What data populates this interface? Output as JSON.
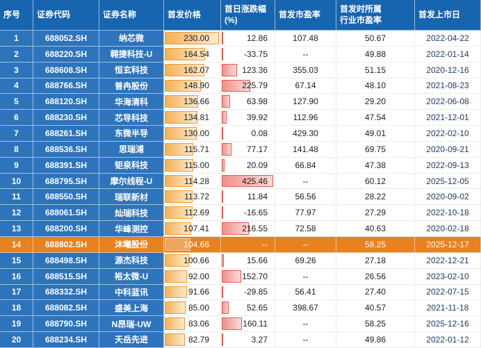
{
  "chart_data": {
    "type": "table",
    "columns": [
      "序号",
      "证券代码",
      "证券名称",
      "首发价格",
      "首日涨跌幅\n(%)",
      "首发市盈率",
      "首发时所属\n行业市盈率",
      "首发上市日"
    ],
    "rows": [
      [
        "1",
        "688052.SH",
        "纳芯微",
        "230.00",
        "12.86",
        "107.48",
        "50.67",
        "2022-04-22"
      ],
      [
        "2",
        "688220.SH",
        "翱捷科技-U",
        "164.54",
        "-33.75",
        "--",
        "49.88",
        "2022-01-14"
      ],
      [
        "3",
        "688608.SH",
        "恒玄科技",
        "162.07",
        "123.36",
        "355.03",
        "51.15",
        "2020-12-16"
      ],
      [
        "4",
        "688766.SH",
        "普冉股份",
        "148.90",
        "225.79",
        "67.14",
        "48.10",
        "2021-08-23"
      ],
      [
        "5",
        "688120.SH",
        "华海清科",
        "136.66",
        "63.98",
        "127.90",
        "29.20",
        "2022-06-08"
      ],
      [
        "6",
        "688230.SH",
        "芯导科技",
        "134.81",
        "39.92",
        "112.96",
        "47.54",
        "2021-12-01"
      ],
      [
        "7",
        "688261.SH",
        "东微半导",
        "130.00",
        "0.08",
        "429.30",
        "49.01",
        "2022-02-10"
      ],
      [
        "8",
        "688536.SH",
        "思瑞浦",
        "115.71",
        "77.17",
        "141.48",
        "69.75",
        "2020-09-21"
      ],
      [
        "9",
        "688391.SH",
        "钜泉科技",
        "115.00",
        "20.09",
        "66.84",
        "47.38",
        "2022-09-13"
      ],
      [
        "10",
        "688795.SH",
        "摩尔线程-U",
        "114.28",
        "425.46",
        "--",
        "60.12",
        "2025-12-05"
      ],
      [
        "11",
        "688550.SH",
        "瑞联新材",
        "113.72",
        "11.84",
        "56.56",
        "28.22",
        "2020-09-02"
      ],
      [
        "12",
        "688061.SH",
        "灿瑞科技",
        "112.69",
        "-16.65",
        "77.97",
        "27.29",
        "2022-10-18"
      ],
      [
        "13",
        "688200.SH",
        "华峰测控",
        "107.41",
        "216.55",
        "72.58",
        "40.63",
        "2020-02-18"
      ],
      [
        "14",
        "688802.SH",
        "沐曦股份",
        "104.66",
        "--",
        "--",
        "58.25",
        "2025-12-17"
      ],
      [
        "15",
        "688498.SH",
        "源杰科技",
        "100.66",
        "15.66",
        "69.26",
        "27.18",
        "2022-12-21"
      ],
      [
        "16",
        "688515.SH",
        "裕太微-U",
        "92.00",
        "152.70",
        "--",
        "26.56",
        "2023-02-10"
      ],
      [
        "17",
        "688332.SH",
        "中科蓝讯",
        "91.66",
        "-29.85",
        "56.41",
        "27.40",
        "2022-07-15"
      ],
      [
        "18",
        "688082.SH",
        "盛美上海",
        "85.00",
        "52.65",
        "398.67",
        "40.57",
        "2021-11-18"
      ],
      [
        "19",
        "688790.SH",
        "N昂瑞-UW",
        "83.06",
        "160.11",
        "--",
        "58.25",
        "2025-12-16"
      ],
      [
        "20",
        "688234.SH",
        "天岳先进",
        "82.79",
        "3.27",
        "--",
        "49.86",
        "2022-01-12"
      ]
    ],
    "highlight_row": "14",
    "bars": {
      "price_max": 230.0,
      "chg_max": 425.46
    }
  },
  "colors": {
    "header_bg": "#1765AF",
    "key_col_bg": "#2D74BD",
    "highlight_bg": "#E8821E",
    "price_bar_fill": "#F5B153",
    "price_bar_fade": "#FDEBD0",
    "price_bar_border": "#ED9A2F",
    "chg_bar_fill": "#F0908A",
    "chg_bar_fade": "#FADBD8",
    "chg_bar_border": "#DE5A52",
    "date_text": "#1B3A6B"
  }
}
